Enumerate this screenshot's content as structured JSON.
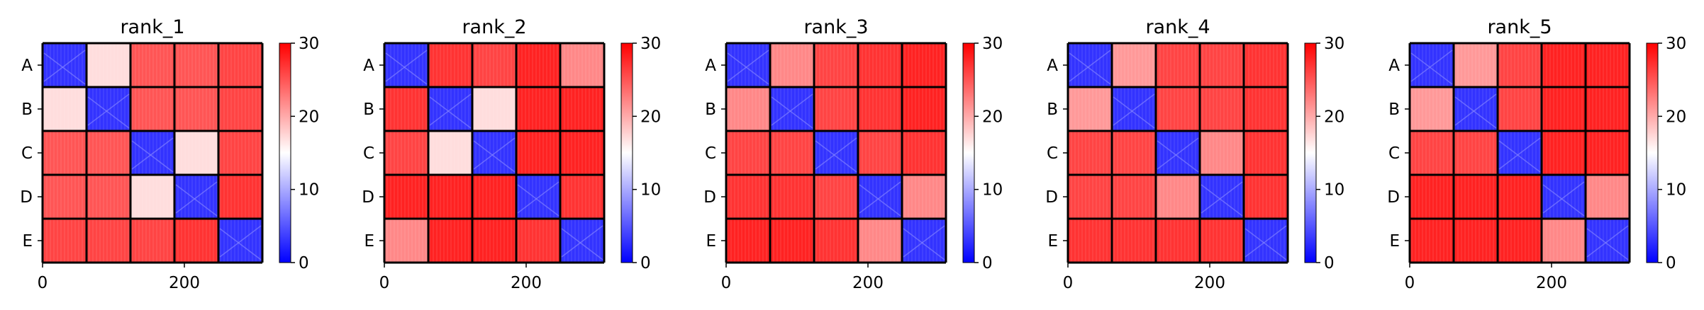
{
  "chart_data": [
    {
      "type": "heatmap",
      "title": "rank_1",
      "row_labels": [
        "A",
        "B",
        "C",
        "D",
        "E"
      ],
      "x_ticks": [
        0,
        200
      ],
      "xlim": [
        0,
        310
      ],
      "colorbar": {
        "ticks": [
          0,
          10,
          20,
          30
        ],
        "range": [
          0,
          30
        ],
        "colormap": "bwr"
      },
      "block_values": [
        [
          3,
          17,
          25,
          25,
          26
        ],
        [
          17,
          3,
          25,
          25,
          26
        ],
        [
          25,
          25,
          3,
          17,
          26
        ],
        [
          25,
          25,
          17,
          3,
          27
        ],
        [
          26,
          26,
          26,
          27,
          3
        ]
      ]
    },
    {
      "type": "heatmap",
      "title": "rank_2",
      "row_labels": [
        "A",
        "B",
        "C",
        "D",
        "E"
      ],
      "x_ticks": [
        0,
        200
      ],
      "xlim": [
        0,
        310
      ],
      "colorbar": {
        "ticks": [
          0,
          10,
          20,
          30
        ],
        "range": [
          0,
          30
        ],
        "colormap": "bwr"
      },
      "block_values": [
        [
          3,
          27,
          26,
          28,
          22
        ],
        [
          27,
          3,
          17,
          28,
          28
        ],
        [
          26,
          17,
          3,
          28,
          28
        ],
        [
          28,
          28,
          28,
          3,
          27
        ],
        [
          22,
          28,
          28,
          27,
          3
        ]
      ]
    },
    {
      "type": "heatmap",
      "title": "rank_3",
      "row_labels": [
        "A",
        "B",
        "C",
        "D",
        "E"
      ],
      "x_ticks": [
        0,
        200
      ],
      "xlim": [
        0,
        310
      ],
      "colorbar": {
        "ticks": [
          0,
          10,
          20,
          30
        ],
        "range": [
          0,
          30
        ],
        "colormap": "bwr"
      },
      "block_values": [
        [
          3,
          22,
          26,
          27,
          28
        ],
        [
          22,
          3,
          26,
          27,
          28
        ],
        [
          26,
          26,
          3,
          26,
          27
        ],
        [
          27,
          27,
          26,
          3,
          22
        ],
        [
          28,
          28,
          27,
          22,
          3
        ]
      ]
    },
    {
      "type": "heatmap",
      "title": "rank_4",
      "row_labels": [
        "A",
        "B",
        "C",
        "D",
        "E"
      ],
      "x_ticks": [
        0,
        200
      ],
      "xlim": [
        0,
        310
      ],
      "colorbar": {
        "ticks": [
          0,
          10,
          20,
          30
        ],
        "range": [
          0,
          30
        ],
        "colormap": "bwr"
      },
      "block_values": [
        [
          3,
          21,
          26,
          26,
          27
        ],
        [
          21,
          3,
          26,
          26,
          27
        ],
        [
          26,
          26,
          3,
          22,
          27
        ],
        [
          26,
          26,
          22,
          3,
          27
        ],
        [
          27,
          27,
          27,
          27,
          3
        ]
      ]
    },
    {
      "type": "heatmap",
      "title": "rank_5",
      "row_labels": [
        "A",
        "B",
        "C",
        "D",
        "E"
      ],
      "x_ticks": [
        0,
        200
      ],
      "xlim": [
        0,
        310
      ],
      "colorbar": {
        "ticks": [
          0,
          10,
          20,
          30
        ],
        "range": [
          0,
          30
        ],
        "colormap": "bwr"
      },
      "block_values": [
        [
          3,
          21,
          26,
          28,
          28
        ],
        [
          21,
          3,
          26,
          28,
          28
        ],
        [
          26,
          26,
          3,
          28,
          28
        ],
        [
          28,
          28,
          28,
          3,
          22
        ],
        [
          28,
          28,
          28,
          22,
          3
        ]
      ]
    }
  ]
}
